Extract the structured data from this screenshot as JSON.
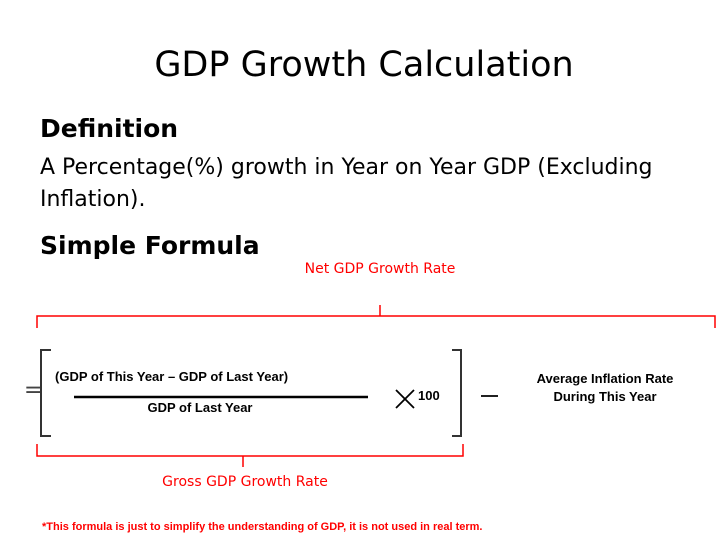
{
  "slide": {
    "title": "GDP Growth Calculation",
    "definition_heading": "Definition",
    "definition_text": "A Percentage(%) growth in Year on Year GDP (Excluding Inflation).",
    "formula_heading": "Simple Formula"
  },
  "formula": {
    "net_label": "Net GDP Growth Rate",
    "gross_label": "Gross GDP Growth Rate",
    "equals": "=",
    "numerator": "(GDP of This Year – GDP of Last Year)",
    "denominator": "GDP of Last Year",
    "multiplier": "100",
    "inflation_line1": "Average Inflation Rate",
    "inflation_line2": "During This Year"
  },
  "footnote": "*This formula is just to simplify the understanding of GDP, it is not used in real term.",
  "colors": {
    "annotation": "#ff0000",
    "text": "#000000"
  }
}
